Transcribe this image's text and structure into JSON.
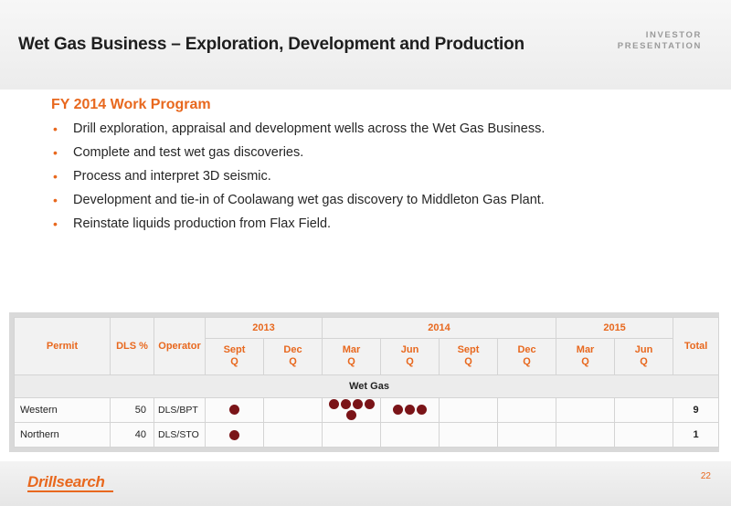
{
  "header": {
    "title": "Wet Gas Business – Exploration, Development and Production",
    "tag_line1": "INVESTOR",
    "tag_line2": "PRESENTATION"
  },
  "content": {
    "section_title": "FY 2014 Work Program",
    "bullets": [
      "Drill exploration, appraisal and development wells across the Wet Gas Business.",
      "Complete and test wet gas discoveries.",
      "Process and interpret 3D seismic.",
      "Development and tie-in of Coolawang wet gas discovery to Middleton Gas Plant.",
      "Reinstate liquids production from Flax Field."
    ]
  },
  "table": {
    "headers": {
      "permit": "Permit",
      "dls": "DLS %",
      "operator": "Operator",
      "total": "Total",
      "years": [
        "2013",
        "2014",
        "2015"
      ],
      "periods": [
        [
          "Sept",
          "Q"
        ],
        [
          "Dec",
          "Q"
        ],
        [
          "Mar",
          "Q"
        ],
        [
          "Jun",
          "Q"
        ],
        [
          "Sept",
          "Q"
        ],
        [
          "Dec",
          "Q"
        ],
        [
          "Mar",
          "Q"
        ],
        [
          "Jun",
          "Q"
        ]
      ]
    },
    "group_label": "Wet Gas",
    "rows": [
      {
        "permit": "Western",
        "dls": "50",
        "operator": "DLS/BPT",
        "dots": [
          1,
          0,
          5,
          3,
          0,
          0,
          0,
          0
        ],
        "total": "9"
      },
      {
        "permit": "Northern",
        "dls": "40",
        "operator": "DLS/STO",
        "dots": [
          1,
          0,
          0,
          0,
          0,
          0,
          0,
          0
        ],
        "total": "1"
      }
    ],
    "dot_color": "#7a1418"
  },
  "footer": {
    "logo": "Drillsearch",
    "page_number": "22"
  },
  "colors": {
    "accent": "#e8681e",
    "title": "#1e1e1e"
  }
}
